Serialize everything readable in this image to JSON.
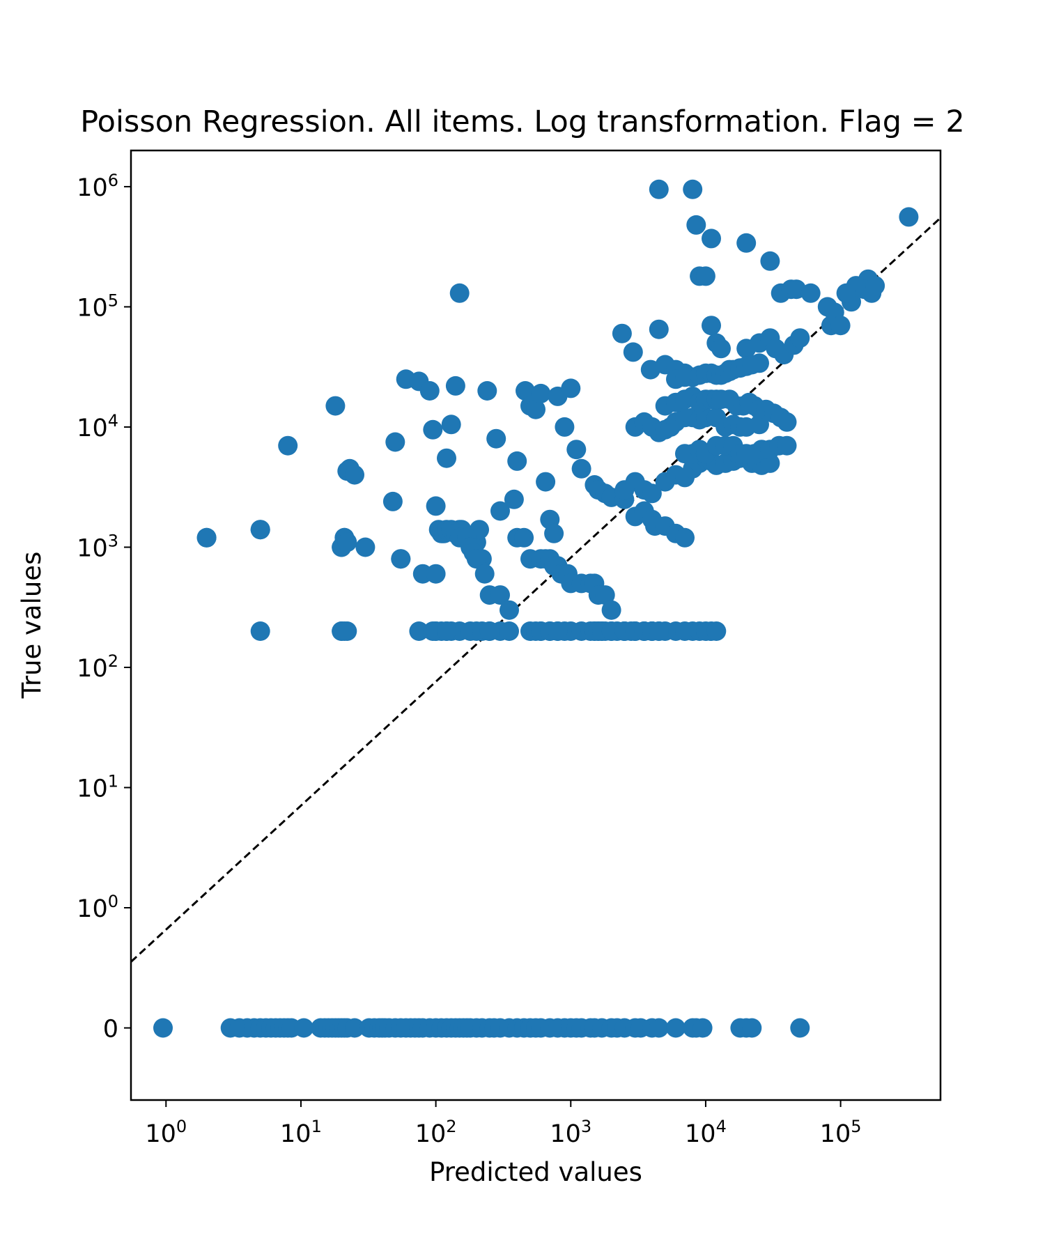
{
  "chart_data": {
    "type": "scatter",
    "title": "Poisson Regression. All items. Log transformation. Flag = 2",
    "xlabel": "Predicted values",
    "ylabel": "True values",
    "xscale": "log",
    "yscale": "symlog",
    "xlim": [
      0.55,
      550000
    ],
    "ylim": [
      -0.6,
      2000000
    ],
    "grid": false,
    "legend": "none",
    "colors": {
      "points": "#1f77b4",
      "reference_line": "#000000",
      "axes": "#000000"
    },
    "reference_line": {
      "style": "dashed",
      "label": "",
      "from": [
        0.55,
        0.55
      ],
      "to": [
        550000,
        550000
      ]
    },
    "x_ticks": [
      {
        "value": 1,
        "base": "10",
        "exp": "0"
      },
      {
        "value": 10,
        "base": "10",
        "exp": "1"
      },
      {
        "value": 100,
        "base": "10",
        "exp": "2"
      },
      {
        "value": 1000,
        "base": "10",
        "exp": "3"
      },
      {
        "value": 10000,
        "base": "10",
        "exp": "4"
      },
      {
        "value": 100000,
        "base": "10",
        "exp": "5"
      }
    ],
    "y_ticks": [
      {
        "value": 0,
        "base": "0",
        "exp": ""
      },
      {
        "value": 1,
        "base": "10",
        "exp": "0"
      },
      {
        "value": 10,
        "base": "10",
        "exp": "1"
      },
      {
        "value": 100,
        "base": "10",
        "exp": "2"
      },
      {
        "value": 1000,
        "base": "10",
        "exp": "3"
      },
      {
        "value": 10000,
        "base": "10",
        "exp": "4"
      },
      {
        "value": 100000,
        "base": "10",
        "exp": "5"
      },
      {
        "value": 1000000,
        "base": "10",
        "exp": "6"
      }
    ],
    "series": [
      {
        "x": [
          0.95,
          3.0,
          3.5,
          4.0,
          4.5,
          5.0,
          5.5,
          6.0,
          6.5,
          7.0,
          7.5,
          8.0,
          8.5,
          10.5,
          14,
          15,
          16,
          17,
          18,
          19,
          20,
          21,
          22,
          25,
          32,
          35,
          38,
          40,
          42,
          45,
          50,
          55,
          60,
          65,
          70,
          75,
          80,
          90,
          100,
          110,
          120,
          130,
          140,
          150,
          160,
          170,
          180,
          200,
          220,
          250,
          270,
          300,
          350,
          400,
          450,
          500,
          550,
          600,
          700,
          800,
          900,
          1000,
          1100,
          1200,
          1400,
          1500,
          1700,
          2000,
          2200,
          2500,
          3000,
          3300,
          4000,
          4500,
          6000,
          8000,
          8500,
          9500,
          18000,
          20000,
          22000,
          50000,
          4500,
          8000,
          8500,
          11000,
          20000,
          30000,
          9000,
          10000,
          36000,
          43000,
          47000,
          60000,
          80000,
          120000,
          160000,
          170000,
          180000,
          150000,
          130000,
          120000,
          110000,
          90000,
          85000,
          100000,
          320000,
          4500,
          2900,
          2400,
          3900,
          5000,
          6000,
          7000,
          11000,
          12000,
          13000,
          15000,
          20000,
          25000,
          30000,
          33000,
          38000,
          45000,
          50000,
          150,
          2,
          5,
          8,
          18,
          20,
          21,
          22,
          23,
          25,
          48,
          50,
          55,
          60,
          75,
          90,
          95,
          100,
          120,
          130,
          140,
          150,
          155,
          160,
          200,
          210,
          220,
          240,
          280,
          300,
          380,
          400,
          460,
          500,
          550,
          600,
          650,
          700,
          750,
          800,
          900,
          1000,
          1100,
          1200,
          1500,
          1600,
          1800,
          2000,
          2500,
          3000,
          3500,
          4000,
          4200,
          5000,
          6000,
          7000,
          2,
          5,
          20,
          21,
          22,
          30,
          55,
          80,
          100,
          105,
          110,
          115,
          120,
          130,
          140,
          150,
          170,
          180,
          190,
          200,
          230,
          250,
          300,
          350,
          400,
          450,
          500,
          600,
          650,
          700,
          750,
          800,
          850,
          900,
          950,
          1000,
          1200,
          1400,
          1500,
          1600,
          1800,
          2000,
          2500,
          3000,
          3500,
          4000,
          5000,
          6000,
          7000,
          8000,
          9000,
          10000,
          11000,
          12000,
          20,
          21,
          22,
          75,
          95,
          100,
          110,
          120,
          130,
          150,
          180,
          200,
          220,
          250,
          300,
          350,
          500,
          600,
          700,
          800,
          900,
          1000,
          1200,
          1400,
          1500,
          1600,
          1700,
          1800,
          2000,
          2200,
          2500,
          2800,
          3000,
          3500,
          4000,
          4500,
          5,
          20,
          100,
          120,
          250,
          550,
          600,
          700,
          800,
          1500,
          1600,
          1700,
          2000,
          2500,
          3000,
          3500,
          4000,
          4500,
          2500,
          3000,
          3500,
          4000,
          5000,
          6000,
          7000,
          8000,
          9000,
          10000,
          11000,
          12000,
          14000,
          16000,
          18000,
          20000,
          22000,
          24000,
          26000,
          28000,
          30000,
          3000,
          3500,
          4000,
          4500,
          5000,
          5500,
          6000,
          7000,
          8000,
          9000,
          10000,
          12000,
          14000,
          16000,
          18000,
          20000,
          25000,
          5000,
          6000,
          7000,
          8000,
          9000,
          10000,
          11000,
          12000,
          13000,
          15000,
          17000,
          19000,
          21000,
          23000,
          25000,
          28000,
          32000,
          36000,
          40000,
          6000,
          7000,
          8000,
          9000,
          10000,
          11000,
          12000,
          13000,
          14000,
          15000,
          16000,
          18000,
          20000,
          22000,
          25000,
          7000,
          8000,
          9000,
          10000,
          12000,
          14000,
          16000,
          18000,
          20000,
          23000,
          26000,
          30000,
          35000,
          40000
        ],
        "y": [
          0,
          0,
          0,
          0,
          0,
          0,
          0,
          0,
          0,
          0,
          0,
          0,
          0,
          0,
          0,
          0,
          0,
          0,
          0,
          0,
          0,
          0,
          0,
          0,
          0,
          0,
          0,
          0,
          0,
          0,
          0,
          0,
          0,
          0,
          0,
          0,
          0,
          0,
          0,
          0,
          0,
          0,
          0,
          0,
          0,
          0,
          0,
          0,
          0,
          0,
          0,
          0,
          0,
          0,
          0,
          0,
          0,
          0,
          0,
          0,
          0,
          0,
          0,
          0,
          0,
          0,
          0,
          0,
          0,
          0,
          0,
          0,
          0,
          0,
          0,
          0,
          0,
          0,
          0,
          0,
          0,
          0,
          950000,
          950000,
          480000,
          370000,
          340000,
          240000,
          180000,
          180000,
          130000,
          140000,
          140000,
          130000,
          100000,
          130000,
          170000,
          130000,
          150000,
          140000,
          150000,
          110000,
          130000,
          90000,
          70000,
          70000,
          560000,
          65000,
          42000,
          60000,
          30000,
          33000,
          30000,
          28000,
          70000,
          50000,
          45000,
          30000,
          45000,
          50000,
          55000,
          45000,
          40000,
          48000,
          55000,
          130000,
          1200,
          1400,
          7000,
          15000,
          1000,
          1200,
          4300,
          4500,
          4000,
          2400,
          7500,
          800,
          25000,
          24000,
          20000,
          9500,
          2200,
          5500,
          10500,
          22000,
          1400,
          1400,
          1200,
          1100,
          1400,
          800,
          20000,
          8000,
          2000,
          2500,
          5200,
          20000,
          15000,
          14000,
          19000,
          3500,
          1700,
          1300,
          18000,
          10000,
          21000,
          6500,
          4500,
          3300,
          3000,
          2800,
          2600,
          2500,
          1800,
          2000,
          1700,
          1500,
          1500,
          1300,
          1200,
          1200,
          1400,
          1000,
          1200,
          1100,
          1000,
          800,
          600,
          600,
          1400,
          1300,
          1300,
          1400,
          1400,
          1300,
          1200,
          1200,
          1000,
          900,
          800,
          600,
          400,
          400,
          300,
          1200,
          1200,
          800,
          800,
          800,
          800,
          700,
          700,
          600,
          600,
          600,
          500,
          500,
          500,
          500,
          400,
          400,
          300,
          200,
          200,
          200,
          200,
          200,
          200,
          200,
          200,
          200,
          200,
          200,
          200,
          200,
          200,
          200,
          200,
          200,
          200,
          200,
          200,
          200,
          200,
          200,
          200,
          200,
          200,
          200,
          200,
          200,
          200,
          200,
          200,
          200,
          200,
          200,
          200,
          200,
          200,
          200,
          200,
          200,
          200,
          200,
          200,
          200,
          200,
          200,
          200,
          200,
          200,
          200,
          200,
          200,
          200,
          200,
          200,
          200,
          200,
          200,
          200,
          200,
          200,
          200,
          200,
          200,
          200,
          3000,
          3500,
          3000,
          2800,
          3500,
          4000,
          3800,
          4500,
          5000,
          5500,
          5200,
          4800,
          5000,
          5200,
          5500,
          5500,
          5000,
          5000,
          4800,
          5000,
          5000,
          10000,
          11000,
          10000,
          9000,
          9500,
          10000,
          11000,
          12000,
          12000,
          11500,
          12000,
          12000,
          10000,
          10500,
          10000,
          10000,
          10500,
          15000,
          16000,
          17000,
          18000,
          16000,
          17000,
          17000,
          17000,
          17000,
          17000,
          15000,
          15000,
          16000,
          15000,
          14000,
          14000,
          13000,
          12000,
          11000,
          25000,
          26000,
          26000,
          27000,
          28000,
          28000,
          27000,
          27000,
          28000,
          29000,
          30000,
          31000,
          32000,
          33000,
          34000,
          6000,
          6000,
          6500,
          6000,
          7000,
          7000,
          7000,
          6000,
          6000,
          6000,
          6500,
          6500,
          7000,
          7000
        ]
      }
    ]
  }
}
